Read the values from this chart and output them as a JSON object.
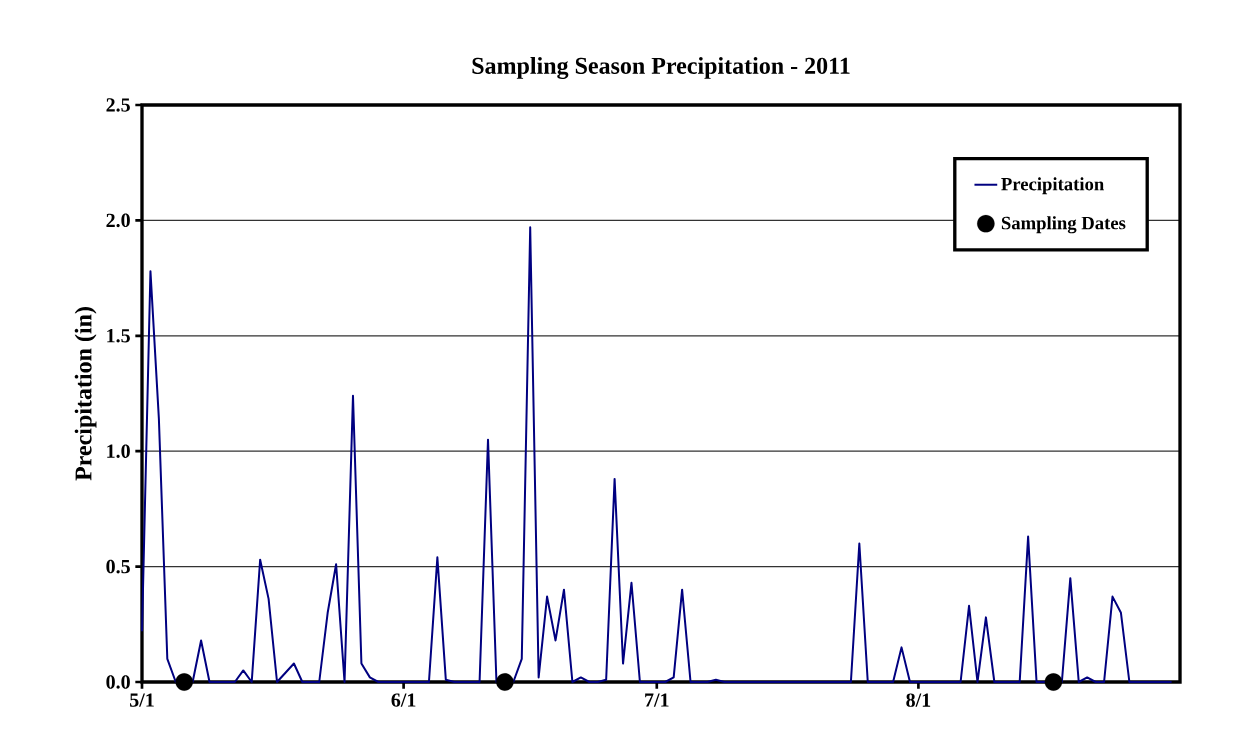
{
  "chart_data": {
    "type": "line",
    "title": "Sampling Season Precipitation - 2011",
    "ylabel": "Precipitation (in)",
    "xlim": [
      "2011-05-01",
      "2011-09-01"
    ],
    "xticks": [
      {
        "value": "2011-05-01",
        "label": "5/1"
      },
      {
        "value": "2011-06-01",
        "label": "6/1"
      },
      {
        "value": "2011-07-01",
        "label": "7/1"
      },
      {
        "value": "2011-08-01",
        "label": "8/1"
      }
    ],
    "ylim": [
      0,
      2.5
    ],
    "yticks": [
      {
        "value": 0,
        "label": "0.0"
      },
      {
        "value": 0.5,
        "label": "0.5"
      },
      {
        "value": 1,
        "label": "1.0"
      },
      {
        "value": 1.5,
        "label": "1.5"
      },
      {
        "value": 2,
        "label": "2.0"
      },
      {
        "value": 2.5,
        "label": "2.5"
      }
    ],
    "grid": "y",
    "legend": "top right",
    "series": [
      {
        "name": "Precipitation",
        "color": "#000080",
        "marker": "none",
        "line_style": "solid",
        "x": [
          "2011-05-01",
          "2011-05-02",
          "2011-05-03",
          "2011-05-04",
          "2011-05-05",
          "2011-05-06",
          "2011-05-07",
          "2011-05-08",
          "2011-05-09",
          "2011-05-10",
          "2011-05-11",
          "2011-05-12",
          "2011-05-13",
          "2011-05-14",
          "2011-05-15",
          "2011-05-16",
          "2011-05-17",
          "2011-05-18",
          "2011-05-19",
          "2011-05-20",
          "2011-05-21",
          "2011-05-22",
          "2011-05-23",
          "2011-05-24",
          "2011-05-25",
          "2011-05-26",
          "2011-05-27",
          "2011-05-28",
          "2011-05-29",
          "2011-05-30",
          "2011-05-31",
          "2011-06-01",
          "2011-06-02",
          "2011-06-03",
          "2011-06-04",
          "2011-06-05",
          "2011-06-06",
          "2011-06-07",
          "2011-06-08",
          "2011-06-09",
          "2011-06-10",
          "2011-06-11",
          "2011-06-12",
          "2011-06-13",
          "2011-06-14",
          "2011-06-15",
          "2011-06-16",
          "2011-06-17",
          "2011-06-18",
          "2011-06-19",
          "2011-06-20",
          "2011-06-21",
          "2011-06-22",
          "2011-06-23",
          "2011-06-24",
          "2011-06-25",
          "2011-06-26",
          "2011-06-27",
          "2011-06-28",
          "2011-06-29",
          "2011-06-30",
          "2011-07-01",
          "2011-07-02",
          "2011-07-03",
          "2011-07-04",
          "2011-07-05",
          "2011-07-06",
          "2011-07-07",
          "2011-07-08",
          "2011-07-09",
          "2011-07-10",
          "2011-07-11",
          "2011-07-12",
          "2011-07-13",
          "2011-07-14",
          "2011-07-15",
          "2011-07-16",
          "2011-07-17",
          "2011-07-18",
          "2011-07-19",
          "2011-07-20",
          "2011-07-21",
          "2011-07-22",
          "2011-07-23",
          "2011-07-24",
          "2011-07-25",
          "2011-07-26",
          "2011-07-27",
          "2011-07-28",
          "2011-07-29",
          "2011-07-30",
          "2011-07-31",
          "2011-08-01",
          "2011-08-02",
          "2011-08-03",
          "2011-08-04",
          "2011-08-05",
          "2011-08-06",
          "2011-08-07",
          "2011-08-08",
          "2011-08-09",
          "2011-08-10",
          "2011-08-11",
          "2011-08-12",
          "2011-08-13",
          "2011-08-14",
          "2011-08-15",
          "2011-08-16",
          "2011-08-17",
          "2011-08-18",
          "2011-08-19",
          "2011-08-20",
          "2011-08-21",
          "2011-08-22",
          "2011-08-23",
          "2011-08-24",
          "2011-08-25",
          "2011-08-26",
          "2011-08-27",
          "2011-08-28",
          "2011-08-29",
          "2011-08-30",
          "2011-08-31"
        ],
        "values": [
          0.22,
          1.78,
          1.14,
          0.1,
          0,
          0,
          0,
          0.18,
          0,
          0,
          0,
          0,
          0.05,
          0,
          0.53,
          0.36,
          0,
          0.04,
          0.08,
          0,
          0,
          0,
          0.3,
          0.51,
          0,
          1.24,
          0.08,
          0.02,
          0,
          0,
          0,
          0,
          0,
          0,
          0,
          0.54,
          0.01,
          0,
          0,
          0,
          0,
          1.05,
          0,
          0,
          0,
          0.1,
          1.97,
          0.02,
          0.37,
          0.18,
          0.4,
          0,
          0.02,
          0,
          0,
          0.01,
          0.88,
          0.08,
          0.43,
          0,
          0,
          0,
          0,
          0.02,
          0.4,
          0,
          0,
          0,
          0.01,
          0,
          0,
          0,
          0,
          0,
          0,
          0,
          0,
          0,
          0,
          0,
          0,
          0,
          0,
          0,
          0,
          0.6,
          0,
          0,
          0,
          0,
          0.15,
          0,
          0,
          0,
          0,
          0,
          0,
          0,
          0.33,
          0,
          0.28,
          0,
          0,
          0,
          0,
          0.63,
          0,
          0,
          0,
          0,
          0.45,
          0,
          0.02,
          0,
          0,
          0.37,
          0.3,
          0,
          0,
          0,
          0,
          0,
          0
        ]
      },
      {
        "name": "Sampling Dates",
        "type": "scatter",
        "color": "#000000",
        "marker": "circle",
        "x": [
          "2011-05-06",
          "2011-06-13",
          "2011-08-17"
        ],
        "values": [
          0,
          0,
          0
        ]
      }
    ]
  }
}
